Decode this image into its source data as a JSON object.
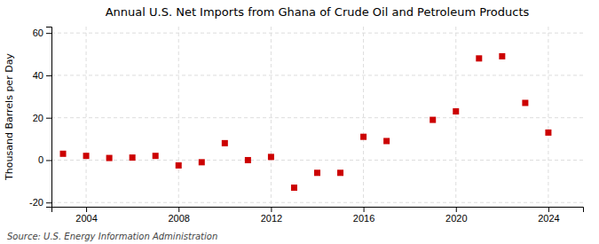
{
  "chart_data": {
    "type": "scatter",
    "title": "Annual U.S. Net Imports from Ghana of Crude Oil and Petroleum Products",
    "ylabel": "Thousand Barrels per Day",
    "source": "Source: U.S. Energy Information Administration",
    "x": [
      2003,
      2004,
      2005,
      2006,
      2007,
      2008,
      2009,
      2010,
      2011,
      2012,
      2013,
      2014,
      2015,
      2016,
      2017,
      2019,
      2020,
      2021,
      2022,
      2023,
      2024
    ],
    "values": [
      3.0,
      2.0,
      1.0,
      1.2,
      2.0,
      -2.5,
      -1.0,
      8.0,
      0.0,
      1.5,
      -13.0,
      -6.0,
      -6.0,
      11.0,
      9.0,
      19.0,
      23.0,
      48.0,
      49.0,
      27.0,
      13.0
    ],
    "color": "#cc0000",
    "marker": "square",
    "xlim": [
      2002.5,
      2025.5
    ],
    "xticks": [
      2004,
      2008,
      2012,
      2016,
      2020,
      2024
    ],
    "ylim": [
      -22,
      63
    ],
    "yticks": [
      -20,
      0,
      20,
      40,
      60
    ],
    "grid": true
  }
}
